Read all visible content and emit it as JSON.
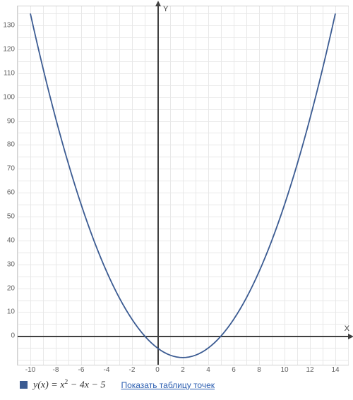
{
  "chart": {
    "type": "line",
    "background_color": "#ffffff",
    "grid_color": "#e8e8e8",
    "axis_color": "#404040",
    "x_axis_label": "X",
    "y_axis_label": "Y",
    "xlim": [
      -11,
      15
    ],
    "ylim": [
      -12,
      138
    ],
    "x_ticks": [
      -10,
      -8,
      -6,
      -4,
      -2,
      0,
      2,
      4,
      6,
      8,
      10,
      12,
      14
    ],
    "x_minor_step": 1,
    "y_ticks": [
      0,
      10,
      20,
      30,
      40,
      50,
      60,
      70,
      80,
      90,
      100,
      110,
      120,
      130
    ],
    "y_minor_step": 5,
    "tick_fontsize": 10,
    "axis_label_fontsize": 11,
    "series": [
      {
        "name": "y(x)",
        "color": "#3b5b92",
        "line_width": 1.8,
        "formula_display": "y(x) = x² − 4x − 5",
        "coeff": {
          "a": 1,
          "b": -4,
          "c": -5
        },
        "x_range": [
          -10,
          14
        ],
        "x_step": 0.25
      }
    ]
  },
  "legend": {
    "swatch_color": "#3b5b92",
    "formula_html_parts": {
      "lhs": "y(x) = ",
      "term1_base": "x",
      "term1_exp": "2",
      "rest": " − 4x − 5"
    },
    "link_label": "Показать таблицу точек"
  }
}
